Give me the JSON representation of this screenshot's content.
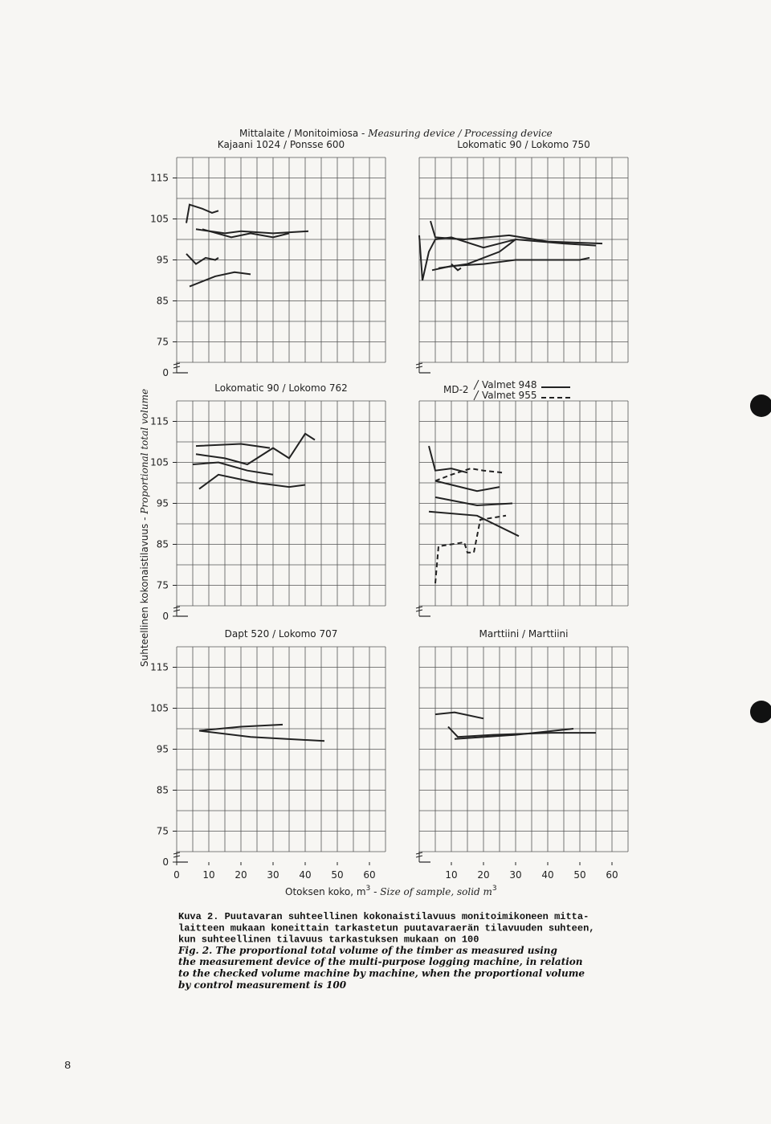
{
  "figure": {
    "header_fi": "Mittalaite / Monitoimiosa - ",
    "header_en": "Measuring device / Processing device",
    "y_label_fi": "Suhteellinen kokonaistilavuus - ",
    "y_label_en": "Proportional total volume",
    "x_label_fi": "Otoksen koko, m",
    "x_label_fi_sup": "3",
    "x_label_dash": " - ",
    "x_label_en": "Size of sample, solid m",
    "x_label_en_sup": "3"
  },
  "chart_data": [
    {
      "type": "line",
      "title": "Kajaani 1024 / Ponsse 600",
      "xlim": [
        0,
        65
      ],
      "ylim": [
        0,
        120
      ],
      "y_break": [
        0,
        70
      ],
      "yticks": [
        0,
        75,
        85,
        95,
        105,
        115
      ],
      "grid": true,
      "series": [
        {
          "color": "#222",
          "x": [
            3,
            4,
            8,
            11,
            13
          ],
          "values": [
            104,
            108.5,
            107.5,
            106.5,
            107
          ]
        },
        {
          "color": "#222",
          "x": [
            6,
            15,
            20,
            30,
            41
          ],
          "values": [
            102.5,
            101.5,
            102,
            101.5,
            102
          ]
        },
        {
          "color": "#222",
          "x": [
            8,
            17,
            23,
            30,
            35
          ],
          "values": [
            102.5,
            100.5,
            101.5,
            100.5,
            101.5
          ]
        },
        {
          "color": "#222",
          "x": [
            3,
            6,
            9,
            12,
            13
          ],
          "values": [
            96.5,
            94,
            95.5,
            95,
            95.5
          ]
        },
        {
          "color": "#222",
          "x": [
            4,
            12,
            18,
            23
          ],
          "values": [
            88.5,
            91,
            92,
            91.5
          ]
        }
      ]
    },
    {
      "type": "line",
      "title": "Lokomatic 90 / Lokomo 750",
      "xlim": [
        0,
        65
      ],
      "ylim": [
        0,
        120
      ],
      "y_break": [
        0,
        70
      ],
      "grid": true,
      "series": [
        {
          "color": "#222",
          "x": [
            3.5,
            5,
            14,
            28,
            40,
            57
          ],
          "values": [
            104.5,
            100.5,
            100,
            101,
            99.5,
            99
          ]
        },
        {
          "color": "#222",
          "x": [
            0,
            1,
            3,
            5,
            10,
            20,
            30,
            45,
            55
          ],
          "values": [
            101,
            90,
            97,
            100,
            100.5,
            98,
            100,
            99,
            98.5
          ]
        },
        {
          "color": "#222",
          "x": [
            4,
            10,
            20,
            30,
            50,
            53
          ],
          "values": [
            92.5,
            93.5,
            94,
            95,
            95,
            95.5
          ]
        },
        {
          "color": "#222",
          "x": [
            6,
            15,
            25,
            30
          ],
          "values": [
            93,
            94,
            97,
            100
          ]
        },
        {
          "color": "#222",
          "x": [
            10,
            12,
            13
          ],
          "values": [
            94,
            92.5,
            93
          ]
        }
      ]
    },
    {
      "type": "line",
      "title": "Lokomatic 90 / Lokomo 762",
      "xlim": [
        0,
        65
      ],
      "ylim": [
        0,
        120
      ],
      "y_break": [
        0,
        70
      ],
      "yticks": [
        0,
        75,
        85,
        95,
        105,
        115
      ],
      "grid": true,
      "series": [
        {
          "color": "#222",
          "x": [
            6,
            20,
            29
          ],
          "values": [
            109,
            109.5,
            108.5
          ]
        },
        {
          "color": "#222",
          "x": [
            6,
            15,
            22,
            30,
            35,
            40,
            43
          ],
          "values": [
            107,
            106,
            104.5,
            108.5,
            106,
            112,
            110.5
          ]
        },
        {
          "color": "#222",
          "x": [
            5,
            13,
            22,
            30
          ],
          "values": [
            104.5,
            105,
            103,
            102
          ]
        },
        {
          "color": "#222",
          "x": [
            7,
            13,
            19,
            25,
            35,
            40
          ],
          "values": [
            98.5,
            102,
            101,
            100,
            99,
            99.5
          ]
        }
      ]
    },
    {
      "type": "line",
      "legend_title": "MD-2",
      "xlim": [
        0,
        65
      ],
      "ylim": [
        0,
        120
      ],
      "y_break": [
        0,
        70
      ],
      "grid": true,
      "series": [
        {
          "name": "Valmet 948",
          "color": "#222",
          "x": [
            3,
            5,
            10,
            15
          ],
          "values": [
            109,
            103,
            103.5,
            102.5
          ]
        },
        {
          "color": "#222",
          "x": [
            5,
            18,
            25
          ],
          "values": [
            100.5,
            98,
            99
          ]
        },
        {
          "color": "#222",
          "x": [
            5,
            18,
            29
          ],
          "values": [
            96.5,
            94.5,
            95
          ]
        },
        {
          "color": "#222",
          "x": [
            3,
            18,
            31
          ],
          "values": [
            93,
            92,
            87
          ]
        },
        {
          "name": "Valmet 955",
          "color": "#222",
          "dashed": true,
          "x": [
            5,
            10,
            16,
            20,
            26
          ],
          "values": [
            100.5,
            102,
            103.5,
            103,
            102.5
          ]
        },
        {
          "color": "#222",
          "dashed": true,
          "x": [
            5,
            6,
            14,
            15,
            17,
            19,
            27
          ],
          "values": [
            75.5,
            84.5,
            85.5,
            83,
            83,
            91,
            92
          ]
        }
      ]
    },
    {
      "type": "line",
      "title": "Dapt 520 / Lokomo 707",
      "xlim": [
        0,
        65
      ],
      "ylim": [
        0,
        120
      ],
      "y_break": [
        0,
        70
      ],
      "yticks": [
        0,
        75,
        85,
        95,
        105,
        115
      ],
      "xticks": [
        0,
        10,
        20,
        30,
        40,
        50,
        60
      ],
      "grid": true,
      "series": [
        {
          "color": "#222",
          "x": [
            7,
            20,
            33
          ],
          "values": [
            99.5,
            100.5,
            101
          ]
        },
        {
          "color": "#222",
          "x": [
            7,
            23,
            46
          ],
          "values": [
            99.5,
            98,
            97
          ]
        }
      ]
    },
    {
      "type": "line",
      "title": "Marttiini / Marttiini",
      "xlim": [
        0,
        65
      ],
      "ylim": [
        0,
        120
      ],
      "y_break": [
        0,
        70
      ],
      "xticks": [
        10,
        20,
        30,
        40,
        50,
        60
      ],
      "grid": true,
      "series": [
        {
          "color": "#222",
          "x": [
            5,
            11,
            20
          ],
          "values": [
            103.5,
            104,
            102.5
          ]
        },
        {
          "color": "#222",
          "x": [
            9,
            12,
            23,
            41,
            55
          ],
          "values": [
            100.5,
            98,
            98.5,
            99,
            99
          ]
        },
        {
          "color": "#222",
          "x": [
            11,
            30,
            48
          ],
          "values": [
            97.5,
            98.5,
            100
          ]
        }
      ]
    }
  ],
  "caption": {
    "fi": [
      "Kuva 2.  Puutavaran suhteellinen kokonaistilavuus monitoimikoneen mitta-",
      "laitteen mukaan koneittain tarkastetun puutavaraerän tilavuuden suhteen,",
      "kun suhteellinen tilavuus tarkastuksen mukaan on 100"
    ],
    "en": [
      "Fig. 2.  The proportional total volume of the timber as measured using",
      "the measurement device of the multi-purpose logging machine, in relation",
      "to the checked volume machine by machine, when the proportional volume",
      "by control measurement is 100"
    ]
  },
  "page_number": "8"
}
